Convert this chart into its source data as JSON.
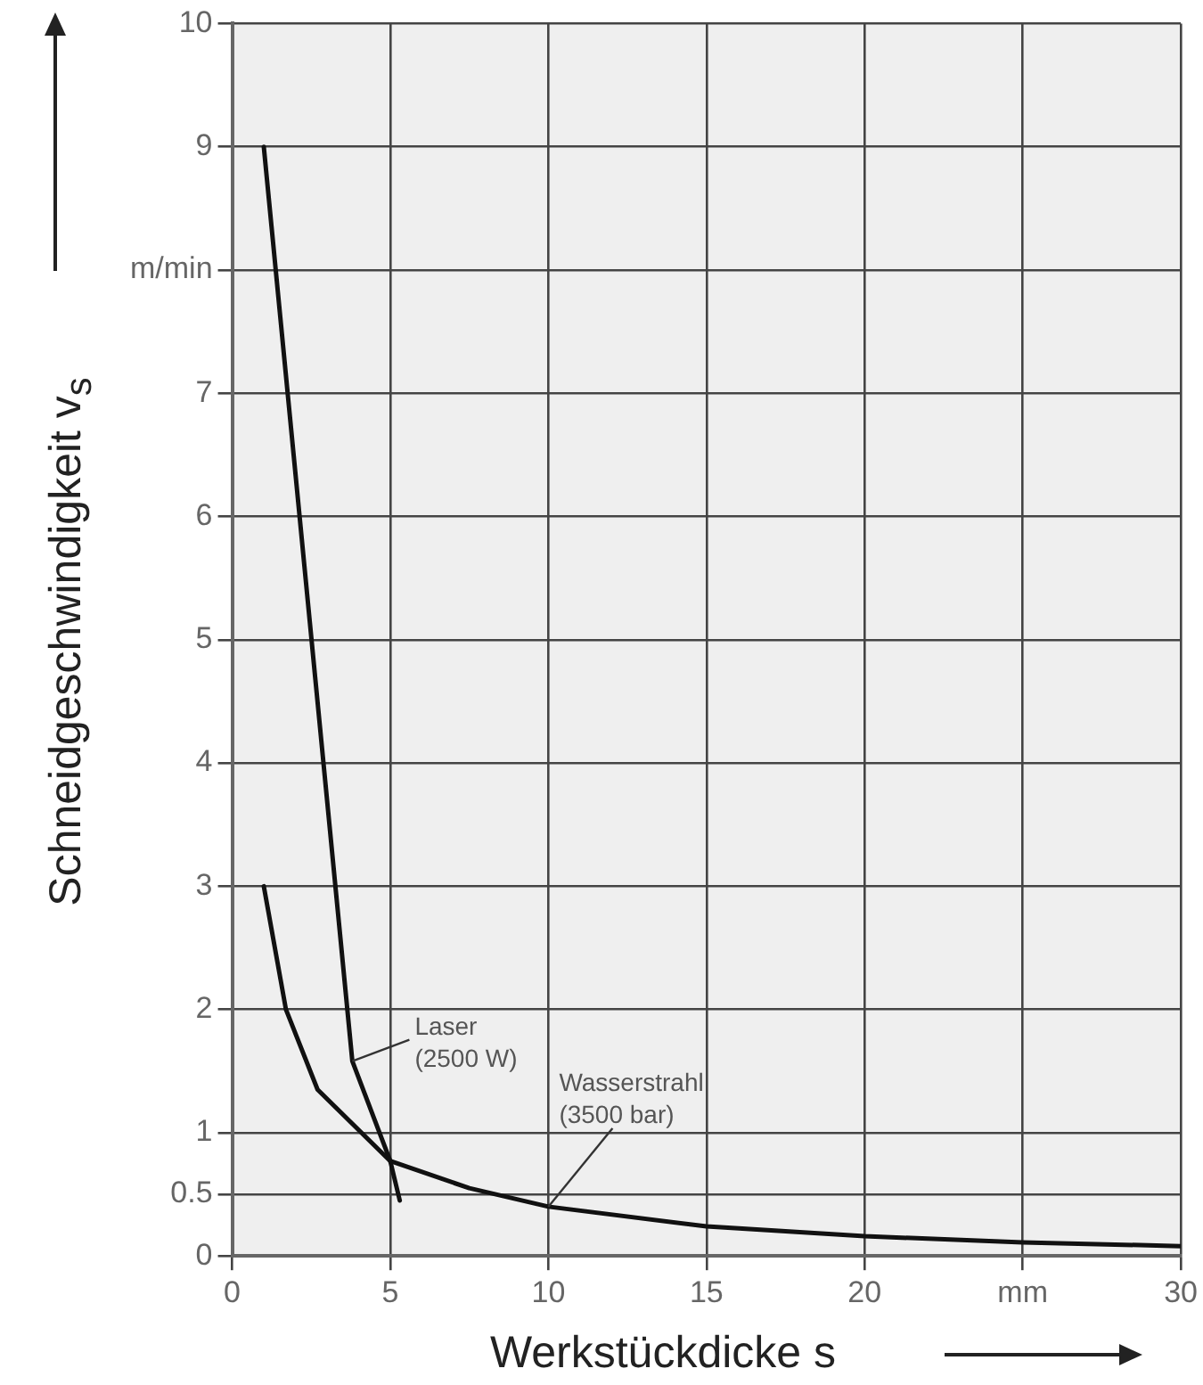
{
  "chart_data": {
    "type": "line",
    "xlabel": "Werkstückdicke s",
    "ylabel": "Schneidgeschwindigkeit v$_{s}$",
    "xlim": [
      0,
      30
    ],
    "xticks": [
      0,
      5,
      10,
      15,
      20,
      {
        "value": 25,
        "label": "mm"
      },
      30
    ],
    "ylim": [
      0,
      10
    ],
    "yticks": [
      0,
      0.5,
      1,
      2,
      3,
      4,
      5,
      6,
      7,
      {
        "value": 8,
        "label": "m/min"
      },
      9,
      10
    ],
    "grid": true,
    "legend": false,
    "marker": "none",
    "line_style": "solid",
    "series": [
      {
        "color": "#111111",
        "x": [
          1,
          3.8,
          5,
          5.3
        ],
        "values": [
          9,
          1.58,
          0.77,
          0.45
        ]
      },
      {
        "color": "#111111",
        "x": [
          1,
          1.7,
          2.7,
          5,
          7.5,
          10,
          15,
          20,
          25,
          30
        ],
        "values": [
          3,
          2,
          1.35,
          0.77,
          0.55,
          0.4,
          0.24,
          0.16,
          0.11,
          0.08
        ]
      }
    ],
    "annotations": [
      {
        "text": "Laser\n(2500 W)",
        "x": 3.8,
        "y": 1.58
      },
      {
        "text": "Wasserstrahl\n(3500 bar)",
        "x": 10,
        "y": 0.4
      }
    ]
  }
}
